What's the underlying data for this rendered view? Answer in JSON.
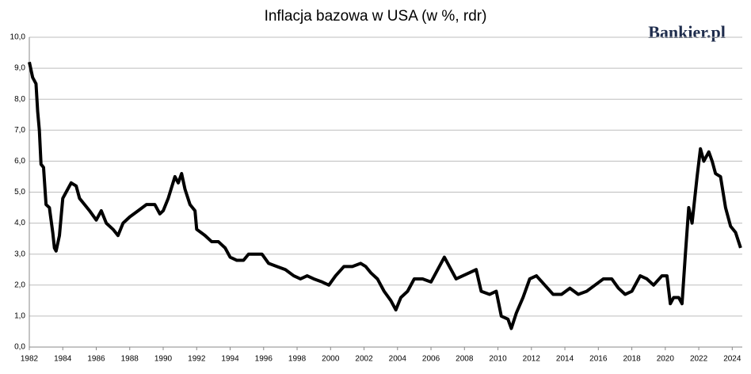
{
  "chart_data": {
    "type": "line",
    "title": "Inflacja bazowa w USA (w %, rdr)",
    "logo": "Bankier.pl",
    "xlim": [
      1982,
      2024.6
    ],
    "xticks": [
      1982,
      1984,
      1986,
      1988,
      1990,
      1992,
      1994,
      1996,
      1998,
      2000,
      2002,
      2004,
      2006,
      2008,
      2010,
      2012,
      2014,
      2016,
      2018,
      2020,
      2022,
      2024
    ],
    "ylim": [
      0,
      10
    ],
    "yticks": [
      {
        "value": 0,
        "label": "0,0"
      },
      {
        "value": 1,
        "label": "1,0"
      },
      {
        "value": 2,
        "label": "2,0"
      },
      {
        "value": 3,
        "label": "3,0"
      },
      {
        "value": 4,
        "label": "4,0"
      },
      {
        "value": 5,
        "label": "5,0"
      },
      {
        "value": 6,
        "label": "6,0"
      },
      {
        "value": 7,
        "label": "7,0"
      },
      {
        "value": 8,
        "label": "8,0"
      },
      {
        "value": 9,
        "label": "9,0"
      },
      {
        "value": 10,
        "label": "10,0"
      }
    ],
    "grid": true,
    "x": [
      1982.0,
      1982.2,
      1982.4,
      1982.5,
      1982.6,
      1982.7,
      1982.85,
      1983.0,
      1983.2,
      1983.4,
      1983.5,
      1983.6,
      1983.8,
      1984.0,
      1984.2,
      1984.5,
      1984.8,
      1985.0,
      1985.3,
      1985.6,
      1986.0,
      1986.3,
      1986.6,
      1987.0,
      1987.3,
      1987.6,
      1988.0,
      1988.5,
      1989.0,
      1989.5,
      1989.8,
      1990.0,
      1990.3,
      1990.7,
      1990.9,
      1991.1,
      1991.3,
      1991.6,
      1991.9,
      1992.0,
      1992.5,
      1992.9,
      1993.3,
      1993.7,
      1994.0,
      1994.4,
      1994.8,
      1995.1,
      1995.5,
      1995.9,
      1996.3,
      1996.8,
      1997.3,
      1997.8,
      1998.2,
      1998.6,
      1999.0,
      1999.5,
      1999.9,
      2000.3,
      2000.8,
      2001.3,
      2001.8,
      2002.1,
      2002.4,
      2002.8,
      2003.2,
      2003.6,
      2003.9,
      2004.2,
      2004.6,
      2005.0,
      2005.5,
      2006.0,
      2006.5,
      2006.8,
      2007.1,
      2007.5,
      2007.9,
      2008.3,
      2008.7,
      2009.0,
      2009.5,
      2009.9,
      2010.2,
      2010.6,
      2010.8,
      2011.1,
      2011.5,
      2011.9,
      2012.3,
      2012.8,
      2013.3,
      2013.8,
      2014.3,
      2014.8,
      2015.3,
      2015.8,
      2016.3,
      2016.8,
      2017.2,
      2017.6,
      2018.0,
      2018.5,
      2018.9,
      2019.3,
      2019.8,
      2020.1,
      2020.3,
      2020.5,
      2020.8,
      2021.0,
      2021.2,
      2021.4,
      2021.6,
      2021.9,
      2022.1,
      2022.3,
      2022.6,
      2022.8,
      2023.0,
      2023.3,
      2023.6,
      2023.9,
      2024.2,
      2024.5
    ],
    "series": [
      {
        "color": "#000000",
        "values": [
          9.2,
          8.7,
          8.5,
          7.6,
          7.0,
          5.9,
          5.8,
          4.6,
          4.5,
          3.7,
          3.2,
          3.1,
          3.6,
          4.8,
          5.0,
          5.3,
          5.2,
          4.8,
          4.6,
          4.4,
          4.1,
          4.4,
          4.0,
          3.8,
          3.6,
          4.0,
          4.2,
          4.4,
          4.6,
          4.6,
          4.3,
          4.4,
          4.8,
          5.5,
          5.3,
          5.6,
          5.1,
          4.6,
          4.4,
          3.8,
          3.6,
          3.4,
          3.4,
          3.2,
          2.9,
          2.8,
          2.8,
          3.0,
          3.0,
          3.0,
          2.7,
          2.6,
          2.5,
          2.3,
          2.2,
          2.3,
          2.2,
          2.1,
          2.0,
          2.3,
          2.6,
          2.6,
          2.7,
          2.6,
          2.4,
          2.2,
          1.8,
          1.5,
          1.2,
          1.6,
          1.8,
          2.2,
          2.2,
          2.1,
          2.6,
          2.9,
          2.6,
          2.2,
          2.3,
          2.4,
          2.5,
          1.8,
          1.7,
          1.8,
          1.0,
          0.9,
          0.6,
          1.1,
          1.6,
          2.2,
          2.3,
          2.0,
          1.7,
          1.7,
          1.9,
          1.7,
          1.8,
          2.0,
          2.2,
          2.2,
          1.9,
          1.7,
          1.8,
          2.3,
          2.2,
          2.0,
          2.3,
          2.3,
          1.4,
          1.6,
          1.6,
          1.4,
          3.0,
          4.5,
          4.0,
          5.5,
          6.4,
          6.0,
          6.3,
          6.0,
          5.6,
          5.5,
          4.5,
          3.9,
          3.7,
          3.2
        ]
      }
    ]
  }
}
